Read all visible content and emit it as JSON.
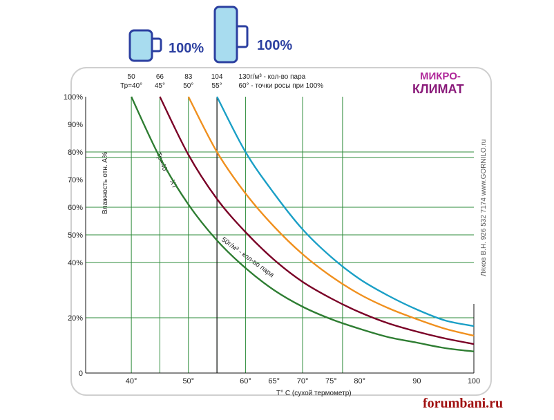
{
  "chart_data": {
    "type": "line",
    "x_axis": {
      "label": "T° C (сухой термометр)",
      "range": [
        32,
        100
      ],
      "ticks": [
        {
          "value": 40,
          "label": "40°"
        },
        {
          "value": 50,
          "label": "50°"
        },
        {
          "value": 60,
          "label": "60°"
        },
        {
          "value": 65,
          "label": "65°"
        },
        {
          "value": 70,
          "label": "70°"
        },
        {
          "value": 75,
          "label": "75°"
        },
        {
          "value": 80,
          "label": "80°"
        },
        {
          "value": 90,
          "label": "90"
        },
        {
          "value": 100,
          "label": "100"
        }
      ]
    },
    "y_axis": {
      "label": "Влажность отн. А%",
      "range": [
        0,
        100
      ],
      "ticks": [
        {
          "value": 0,
          "label": "0"
        },
        {
          "value": 20,
          "label": "20%"
        },
        {
          "value": 40,
          "label": "40%"
        },
        {
          "value": 50,
          "label": "50%"
        },
        {
          "value": 60,
          "label": "60%"
        },
        {
          "value": 70,
          "label": "70%"
        },
        {
          "value": 80,
          "label": "80%"
        },
        {
          "value": 90,
          "label": "90%"
        },
        {
          "value": 100,
          "label": "100%"
        }
      ]
    },
    "top_ticks": [
      {
        "value": 40,
        "label1": "50",
        "label2": "Тр=40°"
      },
      {
        "value": 45,
        "label1": "66",
        "label2": "45°"
      },
      {
        "value": 50,
        "label1": "83",
        "label2": "50°"
      },
      {
        "value": 55,
        "label1": "104",
        "label2": "55°"
      },
      {
        "value": 60,
        "label1": "130г/м³ - кол-во пара",
        "label2": "60° - точки росы при 100%"
      }
    ],
    "series": [
      {
        "color": "#2e7d32",
        "x": [
          40,
          45,
          50,
          55,
          60,
          65,
          70,
          75,
          80,
          85,
          90,
          95,
          100
        ],
        "y": [
          100,
          78,
          61,
          48,
          38,
          30,
          24,
          19.5,
          16,
          13,
          11,
          9,
          7.8
        ]
      },
      {
        "color": "#7a0026",
        "x": [
          45,
          50,
          55,
          60,
          65,
          70,
          75,
          80,
          85,
          90,
          95,
          100
        ],
        "y": [
          100,
          79,
          63,
          51,
          41,
          33,
          27,
          22,
          18,
          15,
          12.5,
          10.5
        ]
      },
      {
        "color": "#f0901e",
        "x": [
          50,
          55,
          60,
          65,
          70,
          75,
          80,
          85,
          90,
          95,
          100
        ],
        "y": [
          100,
          80,
          65,
          53,
          43,
          35,
          28.5,
          23.5,
          19.5,
          16,
          13.5
        ]
      },
      {
        "color": "#1a9fc6",
        "x": [
          55,
          60,
          65,
          70,
          75,
          80,
          85,
          90,
          95,
          100
        ],
        "y": [
          100,
          80,
          65,
          52,
          42,
          34,
          28,
          23,
          19,
          17
        ]
      }
    ],
    "hlines": [
      80,
      78,
      60,
      50,
      40,
      20
    ],
    "vlines": [
      40,
      45,
      50,
      55,
      60,
      70,
      77
    ],
    "annotations": [
      "Тр=40°",
      "ХТ",
      "50г/м³ - кол-во пара"
    ],
    "grid_color": "#2e8b3a"
  },
  "logo": {
    "line1": "МИКРО-",
    "line2": "КЛИМАТ"
  },
  "side_text": "Ляхов В.Н.    926 532 7174    www.GORNILO.ru",
  "badges": [
    "100%",
    "100%"
  ],
  "watermark": "forumbani.ru"
}
